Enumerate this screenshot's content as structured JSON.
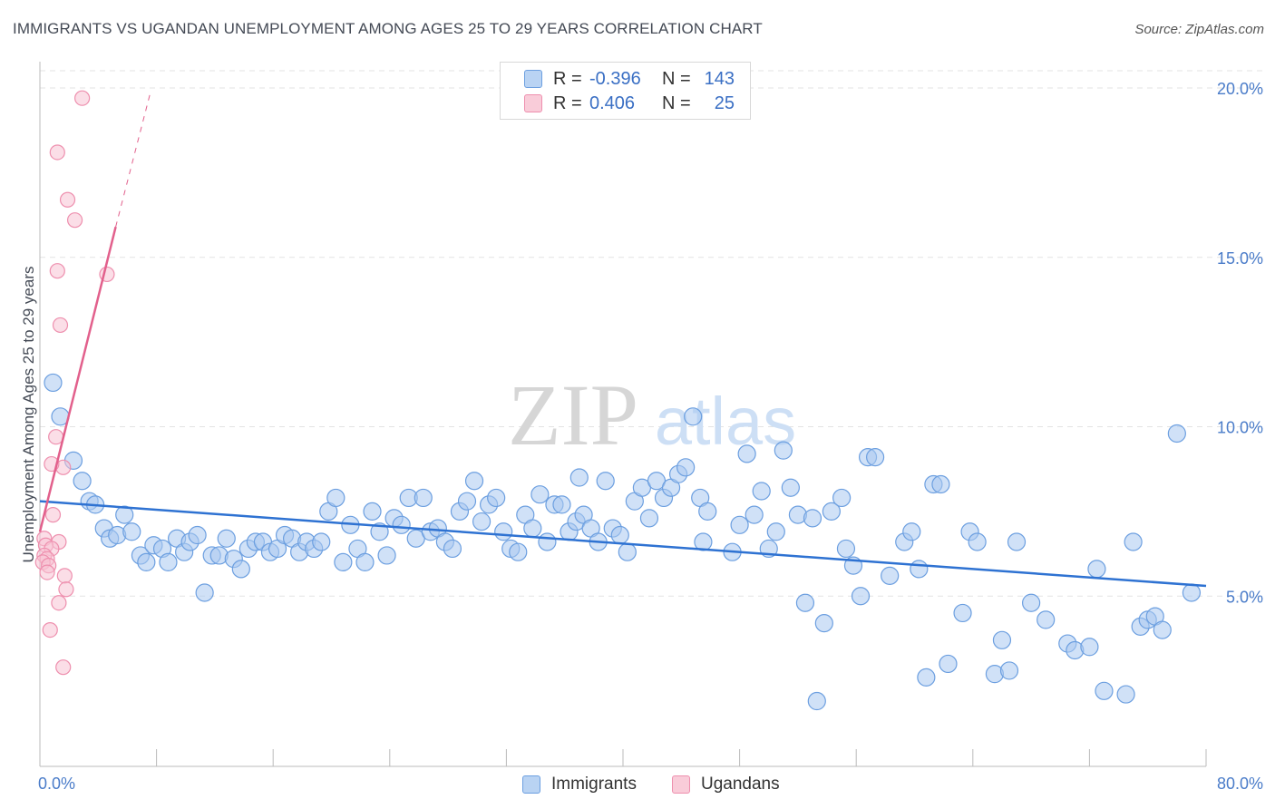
{
  "title": "IMMIGRANTS VS UGANDAN UNEMPLOYMENT AMONG AGES 25 TO 29 YEARS CORRELATION CHART",
  "source": "Source: ZipAtlas.com",
  "watermark": {
    "zip": "ZIP",
    "atlas": "atlas"
  },
  "legend": {
    "series1": {
      "r_label": "R =",
      "r_value": "-0.396",
      "n_label": "N =",
      "n_value": "143"
    },
    "series2": {
      "r_label": "R =",
      "r_value": "0.406",
      "n_label": "N =",
      "n_value": "25"
    }
  },
  "colors": {
    "blue_fill": "#aac8f0",
    "blue_stroke": "#6c9fe0",
    "blue_line": "#2e72d2",
    "pink_fill": "#f8c3d3",
    "pink_stroke": "#ee8fae",
    "pink_line": "#e2608c",
    "tick_text": "#4a7cc9",
    "grid": "#e3e3e3"
  },
  "chart_data": {
    "type": "scatter",
    "title": "IMMIGRANTS VS UGANDAN UNEMPLOYMENT AMONG AGES 25 TO 29 YEARS CORRELATION CHART",
    "xlabel": "",
    "ylabel": "Unemployment Among Ages 25 to 29 years",
    "xlim": [
      0,
      80
    ],
    "ylim": [
      0,
      20.5
    ],
    "x_tick_labels": {
      "left": "0.0%",
      "right": "80.0%"
    },
    "y_ticks": [
      {
        "value": 5,
        "label": "5.0%"
      },
      {
        "value": 10,
        "label": "10.0%"
      },
      {
        "value": 15,
        "label": "15.0%"
      },
      {
        "value": 20,
        "label": "20.0%"
      }
    ],
    "series": [
      {
        "name": "Immigrants",
        "trend": {
          "x": [
            0,
            80
          ],
          "y": [
            7.8,
            5.3
          ]
        },
        "points": [
          [
            0.9,
            11.3
          ],
          [
            1.4,
            10.3
          ],
          [
            2.3,
            9.0
          ],
          [
            2.9,
            8.4
          ],
          [
            3.4,
            7.8
          ],
          [
            3.8,
            7.7
          ],
          [
            4.4,
            7.0
          ],
          [
            4.8,
            6.7
          ],
          [
            5.3,
            6.8
          ],
          [
            5.8,
            7.4
          ],
          [
            6.3,
            6.9
          ],
          [
            6.9,
            6.2
          ],
          [
            7.3,
            6.0
          ],
          [
            7.8,
            6.5
          ],
          [
            8.4,
            6.4
          ],
          [
            8.8,
            6.0
          ],
          [
            9.4,
            6.7
          ],
          [
            9.9,
            6.3
          ],
          [
            10.3,
            6.6
          ],
          [
            10.8,
            6.8
          ],
          [
            11.3,
            5.1
          ],
          [
            11.8,
            6.2
          ],
          [
            12.3,
            6.2
          ],
          [
            12.8,
            6.7
          ],
          [
            13.3,
            6.1
          ],
          [
            13.8,
            5.8
          ],
          [
            14.3,
            6.4
          ],
          [
            14.8,
            6.6
          ],
          [
            15.3,
            6.6
          ],
          [
            15.8,
            6.3
          ],
          [
            16.3,
            6.4
          ],
          [
            16.8,
            6.8
          ],
          [
            17.3,
            6.7
          ],
          [
            17.8,
            6.3
          ],
          [
            18.3,
            6.6
          ],
          [
            18.8,
            6.4
          ],
          [
            19.3,
            6.6
          ],
          [
            19.8,
            7.5
          ],
          [
            20.3,
            7.9
          ],
          [
            20.8,
            6.0
          ],
          [
            21.3,
            7.1
          ],
          [
            21.8,
            6.4
          ],
          [
            22.3,
            6.0
          ],
          [
            22.8,
            7.5
          ],
          [
            23.3,
            6.9
          ],
          [
            23.8,
            6.2
          ],
          [
            24.3,
            7.3
          ],
          [
            24.8,
            7.1
          ],
          [
            25.3,
            7.9
          ],
          [
            25.8,
            6.7
          ],
          [
            26.3,
            7.9
          ],
          [
            26.8,
            6.9
          ],
          [
            27.3,
            7.0
          ],
          [
            27.8,
            6.6
          ],
          [
            28.3,
            6.4
          ],
          [
            28.8,
            7.5
          ],
          [
            29.3,
            7.8
          ],
          [
            29.8,
            8.4
          ],
          [
            30.3,
            7.2
          ],
          [
            30.8,
            7.7
          ],
          [
            31.3,
            7.9
          ],
          [
            31.8,
            6.9
          ],
          [
            32.3,
            6.4
          ],
          [
            32.8,
            6.3
          ],
          [
            33.3,
            7.4
          ],
          [
            33.8,
            7.0
          ],
          [
            34.3,
            8.0
          ],
          [
            34.8,
            6.6
          ],
          [
            35.3,
            7.7
          ],
          [
            35.8,
            7.7
          ],
          [
            36.3,
            6.9
          ],
          [
            36.8,
            7.2
          ],
          [
            37.3,
            7.4
          ],
          [
            37.8,
            7.0
          ],
          [
            38.3,
            6.6
          ],
          [
            38.8,
            8.4
          ],
          [
            39.3,
            7.0
          ],
          [
            39.8,
            6.8
          ],
          [
            40.3,
            6.3
          ],
          [
            40.8,
            7.8
          ],
          [
            41.3,
            8.2
          ],
          [
            41.8,
            7.3
          ],
          [
            42.3,
            8.4
          ],
          [
            42.8,
            7.9
          ],
          [
            43.3,
            8.2
          ],
          [
            43.8,
            8.6
          ],
          [
            44.3,
            8.8
          ],
          [
            44.8,
            10.3
          ],
          [
            45.3,
            7.9
          ],
          [
            45.8,
            7.5
          ],
          [
            47.5,
            6.3
          ],
          [
            48.0,
            7.1
          ],
          [
            48.5,
            9.2
          ],
          [
            49.0,
            7.4
          ],
          [
            49.5,
            8.1
          ],
          [
            50.0,
            6.4
          ],
          [
            50.5,
            6.9
          ],
          [
            51.0,
            9.3
          ],
          [
            51.5,
            8.2
          ],
          [
            52.0,
            7.4
          ],
          [
            52.5,
            4.8
          ],
          [
            53.0,
            7.3
          ],
          [
            53.3,
            1.9
          ],
          [
            53.8,
            4.2
          ],
          [
            54.3,
            7.5
          ],
          [
            55.3,
            6.4
          ],
          [
            55.8,
            5.9
          ],
          [
            56.3,
            5.0
          ],
          [
            56.8,
            9.1
          ],
          [
            57.3,
            9.1
          ],
          [
            58.3,
            5.6
          ],
          [
            59.3,
            6.6
          ],
          [
            59.8,
            6.9
          ],
          [
            60.3,
            5.8
          ],
          [
            60.8,
            2.6
          ],
          [
            61.3,
            8.3
          ],
          [
            61.8,
            8.3
          ],
          [
            62.3,
            3.0
          ],
          [
            63.3,
            4.5
          ],
          [
            63.8,
            6.9
          ],
          [
            64.3,
            6.6
          ],
          [
            65.5,
            2.7
          ],
          [
            66.0,
            3.7
          ],
          [
            66.5,
            2.8
          ],
          [
            67.0,
            6.6
          ],
          [
            68.0,
            4.8
          ],
          [
            69.0,
            4.3
          ],
          [
            70.5,
            3.6
          ],
          [
            71.0,
            3.4
          ],
          [
            72.0,
            3.5
          ],
          [
            72.5,
            5.8
          ],
          [
            73.0,
            2.2
          ],
          [
            74.5,
            2.1
          ],
          [
            75.0,
            6.6
          ],
          [
            75.5,
            4.1
          ],
          [
            76.0,
            4.3
          ],
          [
            76.5,
            4.4
          ],
          [
            77.0,
            4.0
          ],
          [
            78.0,
            9.8
          ],
          [
            79.0,
            5.1
          ],
          [
            45.5,
            6.6
          ],
          [
            37.0,
            8.5
          ],
          [
            55.0,
            7.9
          ]
        ]
      },
      {
        "name": "Ugandans",
        "trend": {
          "x": [
            0,
            5.2
          ],
          "y": [
            6.9,
            15.9
          ]
        },
        "trend_dashed": {
          "x": [
            5.2,
            7.6
          ],
          "y": [
            15.9,
            19.9
          ]
        },
        "points": [
          [
            2.9,
            19.7
          ],
          [
            1.2,
            18.1
          ],
          [
            1.9,
            16.7
          ],
          [
            2.4,
            16.1
          ],
          [
            1.2,
            14.6
          ],
          [
            4.6,
            14.5
          ],
          [
            1.4,
            13.0
          ],
          [
            1.1,
            9.7
          ],
          [
            1.6,
            8.8
          ],
          [
            0.8,
            8.9
          ],
          [
            0.9,
            7.4
          ],
          [
            0.3,
            6.7
          ],
          [
            1.3,
            6.6
          ],
          [
            0.4,
            6.5
          ],
          [
            0.8,
            6.4
          ],
          [
            0.3,
            6.2
          ],
          [
            0.5,
            6.1
          ],
          [
            0.2,
            6.0
          ],
          [
            0.6,
            5.9
          ],
          [
            0.5,
            5.7
          ],
          [
            1.7,
            5.6
          ],
          [
            1.8,
            5.2
          ],
          [
            1.3,
            4.8
          ],
          [
            0.7,
            4.0
          ],
          [
            1.6,
            2.9
          ]
        ]
      }
    ],
    "legend_labels": [
      "Immigrants",
      "Ugandans"
    ]
  }
}
